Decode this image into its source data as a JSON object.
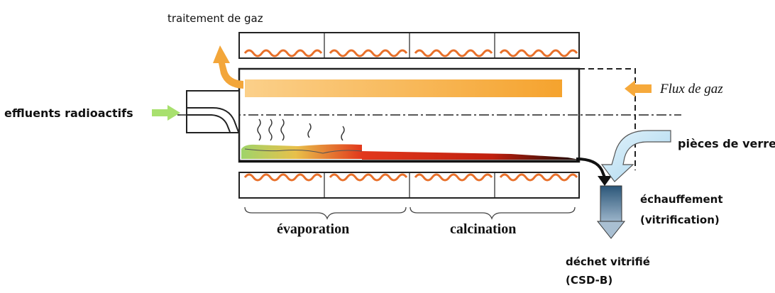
{
  "labels": {
    "gas_treatment": "traitement de gaz",
    "effluents": "effluents radioactifs",
    "gas_flow": "Flux de gaz",
    "glass_pieces": "pièces de verre",
    "heating_line1": "échauffement",
    "heating_line2": "(vitrification)",
    "evaporation": "évaporation",
    "calcination": "calcination",
    "waste_line1": "déchet vitrifié",
    "waste_line2": "(CSD-B)"
  },
  "colors": {
    "gas_bar": "#f6a93b",
    "heater_coil": "#e8702a",
    "green_feed": "#a8d86e",
    "glass_arrow": "#cfe9f7",
    "outlet_blue": "#3d6f96"
  }
}
